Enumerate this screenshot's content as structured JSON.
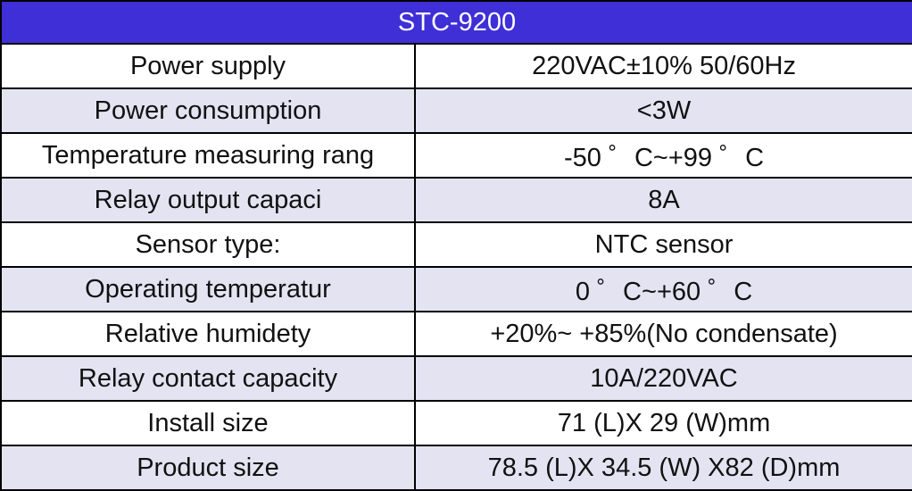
{
  "table": {
    "title": "STC-9200",
    "rows": [
      {
        "label": "Power supply",
        "value": "220VAC±10% 50/60Hz"
      },
      {
        "label": "Power consumption",
        "value": "<3W"
      },
      {
        "label": "Temperature measuring rang",
        "value": "-50 ゜C~+99 ゜C"
      },
      {
        "label": "Relay output capaci",
        "value": "8A"
      },
      {
        "label": "Sensor type:",
        "value": "NTC sensor"
      },
      {
        "label": "Operating temperatur",
        "value": "0 ゜C~+60 ゜C"
      },
      {
        "label": "Relative humidety",
        "value": "+20%~ +85%(No condensate)"
      },
      {
        "label": "Relay contact capacity",
        "value": "10A/220VAC"
      },
      {
        "label": "Install size",
        "value": "71 (L)X 29  (W)mm"
      },
      {
        "label": "Product size",
        "value": "78.5 (L)X 34.5 (W) X82 (D)mm"
      }
    ]
  },
  "colors": {
    "header_bg": "#3f2fd6",
    "header_text": "#ffffff",
    "row_alt_bg": "#e4e3f2",
    "border": "#000000"
  }
}
